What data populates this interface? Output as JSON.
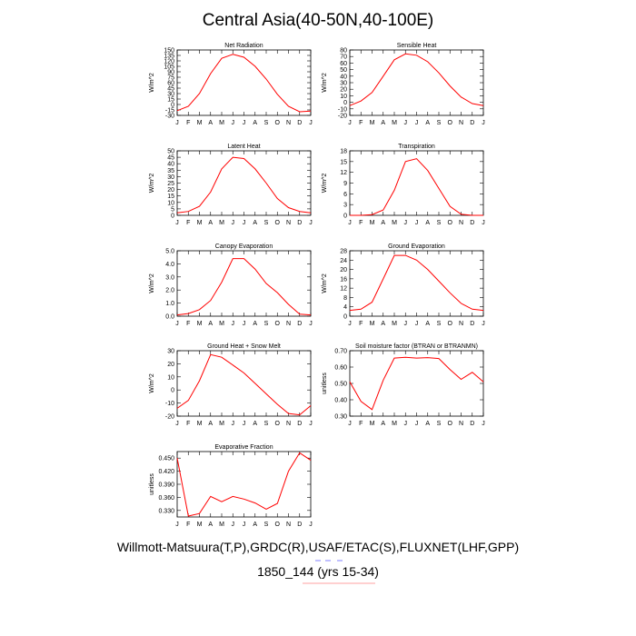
{
  "page": {
    "title": "Central Asia(40-50N,40-100E)",
    "footer_line1": "Willmott-Matsuura(T,P),GRDC(R),USAF/ETAC(S),FLUXNET(LHF,GPP)",
    "footer_line2": "1850_144 (yrs 15-34)"
  },
  "colors": {
    "line": "#ff0000",
    "underline_pink": "#ff8080",
    "underline_blue": "#6060ff",
    "axis": "#000000"
  },
  "chart_data": [
    {
      "type": "line",
      "title": "Net Radiation",
      "ylabel": "W/m^2",
      "categories": [
        "J",
        "F",
        "M",
        "A",
        "M",
        "J",
        "J",
        "A",
        "S",
        "O",
        "N",
        "D",
        "J"
      ],
      "values": [
        -17,
        -5,
        30,
        85,
        127,
        138,
        130,
        105,
        70,
        28,
        -5,
        -20,
        -18
      ],
      "ylim": [
        -30,
        150
      ],
      "yticks": [
        -30,
        -15,
        0,
        15,
        30,
        45,
        60,
        75,
        90,
        105,
        120,
        135,
        150
      ],
      "ytick_labels": [
        "-30",
        "-15",
        "0",
        "15",
        "30",
        "45",
        "60",
        "75",
        "90",
        "105",
        "120",
        "135",
        "150"
      ]
    },
    {
      "type": "line",
      "title": "Sensible Heat",
      "ylabel": "W/m^2",
      "categories": [
        "J",
        "F",
        "M",
        "A",
        "M",
        "J",
        "J",
        "A",
        "S",
        "O",
        "N",
        "D",
        "J"
      ],
      "values": [
        -5,
        2,
        15,
        40,
        65,
        74,
        72,
        62,
        45,
        25,
        8,
        -2,
        -5
      ],
      "ylim": [
        -20,
        80
      ],
      "yticks": [
        -20,
        -10,
        0,
        10,
        20,
        30,
        40,
        50,
        60,
        70,
        80
      ],
      "ytick_labels": [
        "-20",
        "-10",
        "0",
        "10",
        "20",
        "30",
        "40",
        "50",
        "60",
        "70",
        "80"
      ]
    },
    {
      "type": "line",
      "title": "Latent Heat",
      "ylabel": "W/m^2",
      "categories": [
        "J",
        "F",
        "M",
        "A",
        "M",
        "J",
        "J",
        "A",
        "S",
        "O",
        "N",
        "D",
        "J"
      ],
      "values": [
        2,
        3,
        7,
        18,
        36,
        45,
        44,
        36,
        25,
        13,
        6,
        3,
        2
      ],
      "ylim": [
        0,
        50
      ],
      "yticks": [
        0,
        5,
        10,
        15,
        20,
        25,
        30,
        35,
        40,
        45,
        50
      ],
      "ytick_labels": [
        "0",
        "5",
        "10",
        "15",
        "20",
        "25",
        "30",
        "35",
        "40",
        "45",
        "50"
      ]
    },
    {
      "type": "line",
      "title": "Transpiration",
      "ylabel": "W/m^2",
      "categories": [
        "J",
        "F",
        "M",
        "A",
        "M",
        "J",
        "J",
        "A",
        "S",
        "O",
        "N",
        "D",
        "J"
      ],
      "values": [
        0,
        0,
        0.2,
        1.5,
        7,
        15,
        15.8,
        12.5,
        7.5,
        2.5,
        0.3,
        0,
        0
      ],
      "ylim": [
        0,
        18
      ],
      "yticks": [
        0,
        3,
        6,
        9,
        12,
        15,
        18
      ],
      "ytick_labels": [
        "0",
        "3",
        "6",
        "9",
        "12",
        "15",
        "18"
      ]
    },
    {
      "type": "line",
      "title": "Canopy Evaporation",
      "ylabel": "W/m^2",
      "categories": [
        "J",
        "F",
        "M",
        "A",
        "M",
        "J",
        "J",
        "A",
        "S",
        "O",
        "N",
        "D",
        "J"
      ],
      "values": [
        0.1,
        0.2,
        0.5,
        1.2,
        2.6,
        4.4,
        4.4,
        3.6,
        2.5,
        1.8,
        0.9,
        0.15,
        0.1
      ],
      "ylim": [
        0,
        5
      ],
      "yticks": [
        0,
        1,
        2,
        3,
        4,
        5
      ],
      "ytick_labels": [
        "0.0",
        "1.0",
        "2.0",
        "3.0",
        "4.0",
        "5.0"
      ]
    },
    {
      "type": "line",
      "title": "Ground Evaporation",
      "ylabel": "W/m^2",
      "categories": [
        "J",
        "F",
        "M",
        "A",
        "M",
        "J",
        "J",
        "A",
        "S",
        "O",
        "N",
        "D",
        "J"
      ],
      "values": [
        2.5,
        3,
        6,
        16,
        26,
        26,
        24,
        20,
        15,
        10,
        5.5,
        3,
        2.5
      ],
      "ylim": [
        0,
        28
      ],
      "yticks": [
        0,
        4,
        8,
        12,
        16,
        20,
        24,
        28
      ],
      "ytick_labels": [
        "0",
        "4",
        "8",
        "12",
        "16",
        "20",
        "24",
        "28"
      ]
    },
    {
      "type": "line",
      "title": "Ground Heat + Snow Melt",
      "ylabel": "W/m^2",
      "categories": [
        "J",
        "F",
        "M",
        "A",
        "M",
        "J",
        "J",
        "A",
        "S",
        "O",
        "N",
        "D",
        "J"
      ],
      "values": [
        -14,
        -8,
        7,
        27,
        25,
        19,
        13,
        5,
        -3,
        -11,
        -18,
        -19,
        -12
      ],
      "ylim": [
        -20,
        30
      ],
      "yticks": [
        -20,
        -10,
        0,
        10,
        20,
        30
      ],
      "ytick_labels": [
        "-20",
        "-10",
        "0",
        "10",
        "20",
        "30"
      ]
    },
    {
      "type": "line",
      "title": "Soil moisture factor (BTRAN or BTRANMN)",
      "ylabel": "unitless",
      "categories": [
        "J",
        "F",
        "M",
        "A",
        "M",
        "J",
        "J",
        "A",
        "S",
        "O",
        "N",
        "D",
        "J"
      ],
      "values": [
        0.51,
        0.39,
        0.34,
        0.52,
        0.655,
        0.66,
        0.655,
        0.658,
        0.652,
        0.585,
        0.525,
        0.568,
        0.51
      ],
      "ylim": [
        0.3,
        0.7
      ],
      "yticks": [
        0.3,
        0.4,
        0.5,
        0.6,
        0.7
      ],
      "ytick_labels": [
        "0.30",
        "0.40",
        "0.50",
        "0.60",
        "0.70"
      ]
    },
    {
      "type": "line",
      "title": "Evaporative Fraction",
      "ylabel": "unitless",
      "categories": [
        "J",
        "F",
        "M",
        "A",
        "M",
        "J",
        "J",
        "A",
        "S",
        "O",
        "N",
        "D",
        "J"
      ],
      "values": [
        0.45,
        0.317,
        0.323,
        0.362,
        0.35,
        0.362,
        0.356,
        0.347,
        0.333,
        0.346,
        0.42,
        0.462,
        0.445
      ],
      "ylim": [
        0.315,
        0.465
      ],
      "yticks": [
        0.33,
        0.36,
        0.39,
        0.42,
        0.45
      ],
      "ytick_labels": [
        "0.330",
        "0.360",
        "0.390",
        "0.420",
        "0.450"
      ]
    }
  ]
}
